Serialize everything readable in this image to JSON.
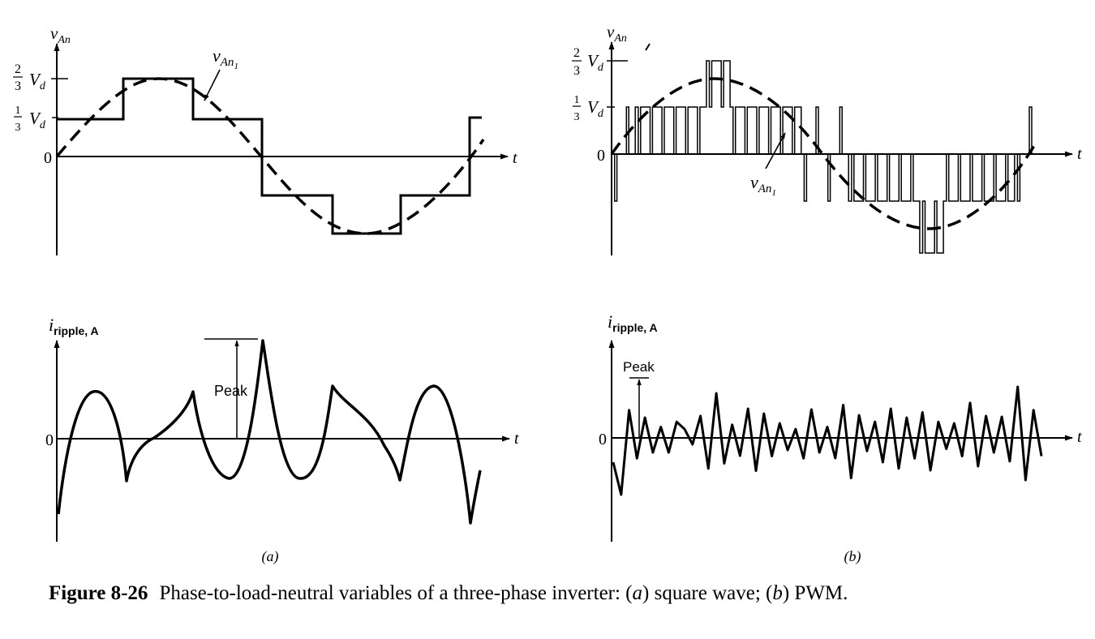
{
  "figure": {
    "caption": {
      "number": "Figure 8-26",
      "text_1": "Phase-to-load-neutral variables of a three-phase inverter: (",
      "a": "a",
      "text_2": ") square wave; (",
      "b": "b",
      "text_3": ") PWM."
    },
    "panel_a": {
      "label": "(a)",
      "voltage": {
        "y_label_main": "v",
        "y_label_sub": "An",
        "fundamental_label_main": "v",
        "fundamental_label_sub": "An",
        "fundamental_label_subsub": "1",
        "x_label": "t",
        "zero_label": "0",
        "tick_two_thirds_num": "2",
        "tick_two_thirds_den": "3",
        "tick_one_third_num": "1",
        "tick_one_third_den": "3",
        "tick_vd_main": "V",
        "tick_vd_sub": "d"
      },
      "ripple": {
        "y_label_main": "i",
        "y_label_sub": "ripple, A",
        "x_label": "t",
        "zero_label": "0",
        "peak_label": "Peak"
      }
    },
    "panel_b": {
      "label": "(b)",
      "voltage": {
        "y_label_main": "v",
        "y_label_sub": "An",
        "fundamental_label_main": "v",
        "fundamental_label_sub": "An",
        "fundamental_label_subsub": "1",
        "x_label": "t",
        "zero_label": "0",
        "tick_two_thirds_num": "2",
        "tick_two_thirds_den": "3",
        "tick_one_third_num": "1",
        "tick_one_third_den": "3",
        "tick_vd_main": "V",
        "tick_vd_sub": "d"
      },
      "ripple": {
        "y_label_main": "i",
        "y_label_sub": "ripple, A",
        "x_label": "t",
        "zero_label": "0",
        "peak_label": "Peak"
      }
    }
  }
}
